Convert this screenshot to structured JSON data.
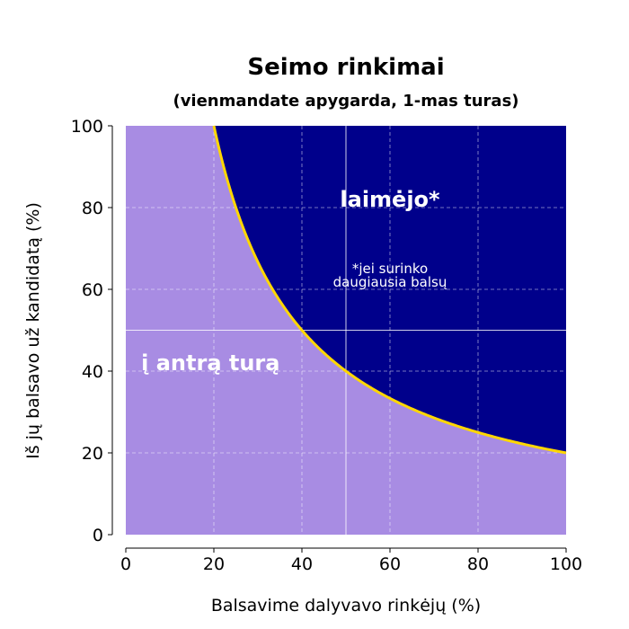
{
  "chart_data": {
    "type": "area",
    "title": "Seimo rinkimai",
    "subtitle": "(vienmandate apygarda, 1-mas turas)",
    "xlabel": "Balsavime dalyvavo rinkėjų (%)",
    "ylabel": "Iš jų balsavo už kandidatą (%)",
    "xlim": [
      0,
      100
    ],
    "ylim": [
      0,
      100
    ],
    "xticks": [
      0,
      20,
      40,
      60,
      80,
      100
    ],
    "yticks": [
      0,
      20,
      40,
      60,
      80,
      100
    ],
    "grid": true,
    "curve": {
      "equation": "y = 2000 / x",
      "color": "#FFD700"
    },
    "curve_points": {
      "x": [
        20,
        25,
        30,
        35,
        40,
        45,
        50,
        55,
        60,
        65,
        70,
        75,
        80,
        85,
        90,
        95,
        100
      ],
      "y": [
        100,
        80,
        66.7,
        57.1,
        50,
        44.4,
        40,
        36.4,
        33.3,
        30.8,
        28.6,
        26.7,
        25,
        23.5,
        22.2,
        21.1,
        20
      ]
    },
    "reference_lines": {
      "x": 50,
      "y": 50
    },
    "regions": [
      {
        "label": "laimėjo*",
        "color": "#00008B",
        "note": "*jei surinko daugiausia balsų"
      },
      {
        "label": "į antrą turą",
        "color": "#A88CE3"
      }
    ]
  },
  "colors": {
    "winner": "#00008B",
    "runoff": "#A88CE3",
    "curve": "#FFD700"
  }
}
